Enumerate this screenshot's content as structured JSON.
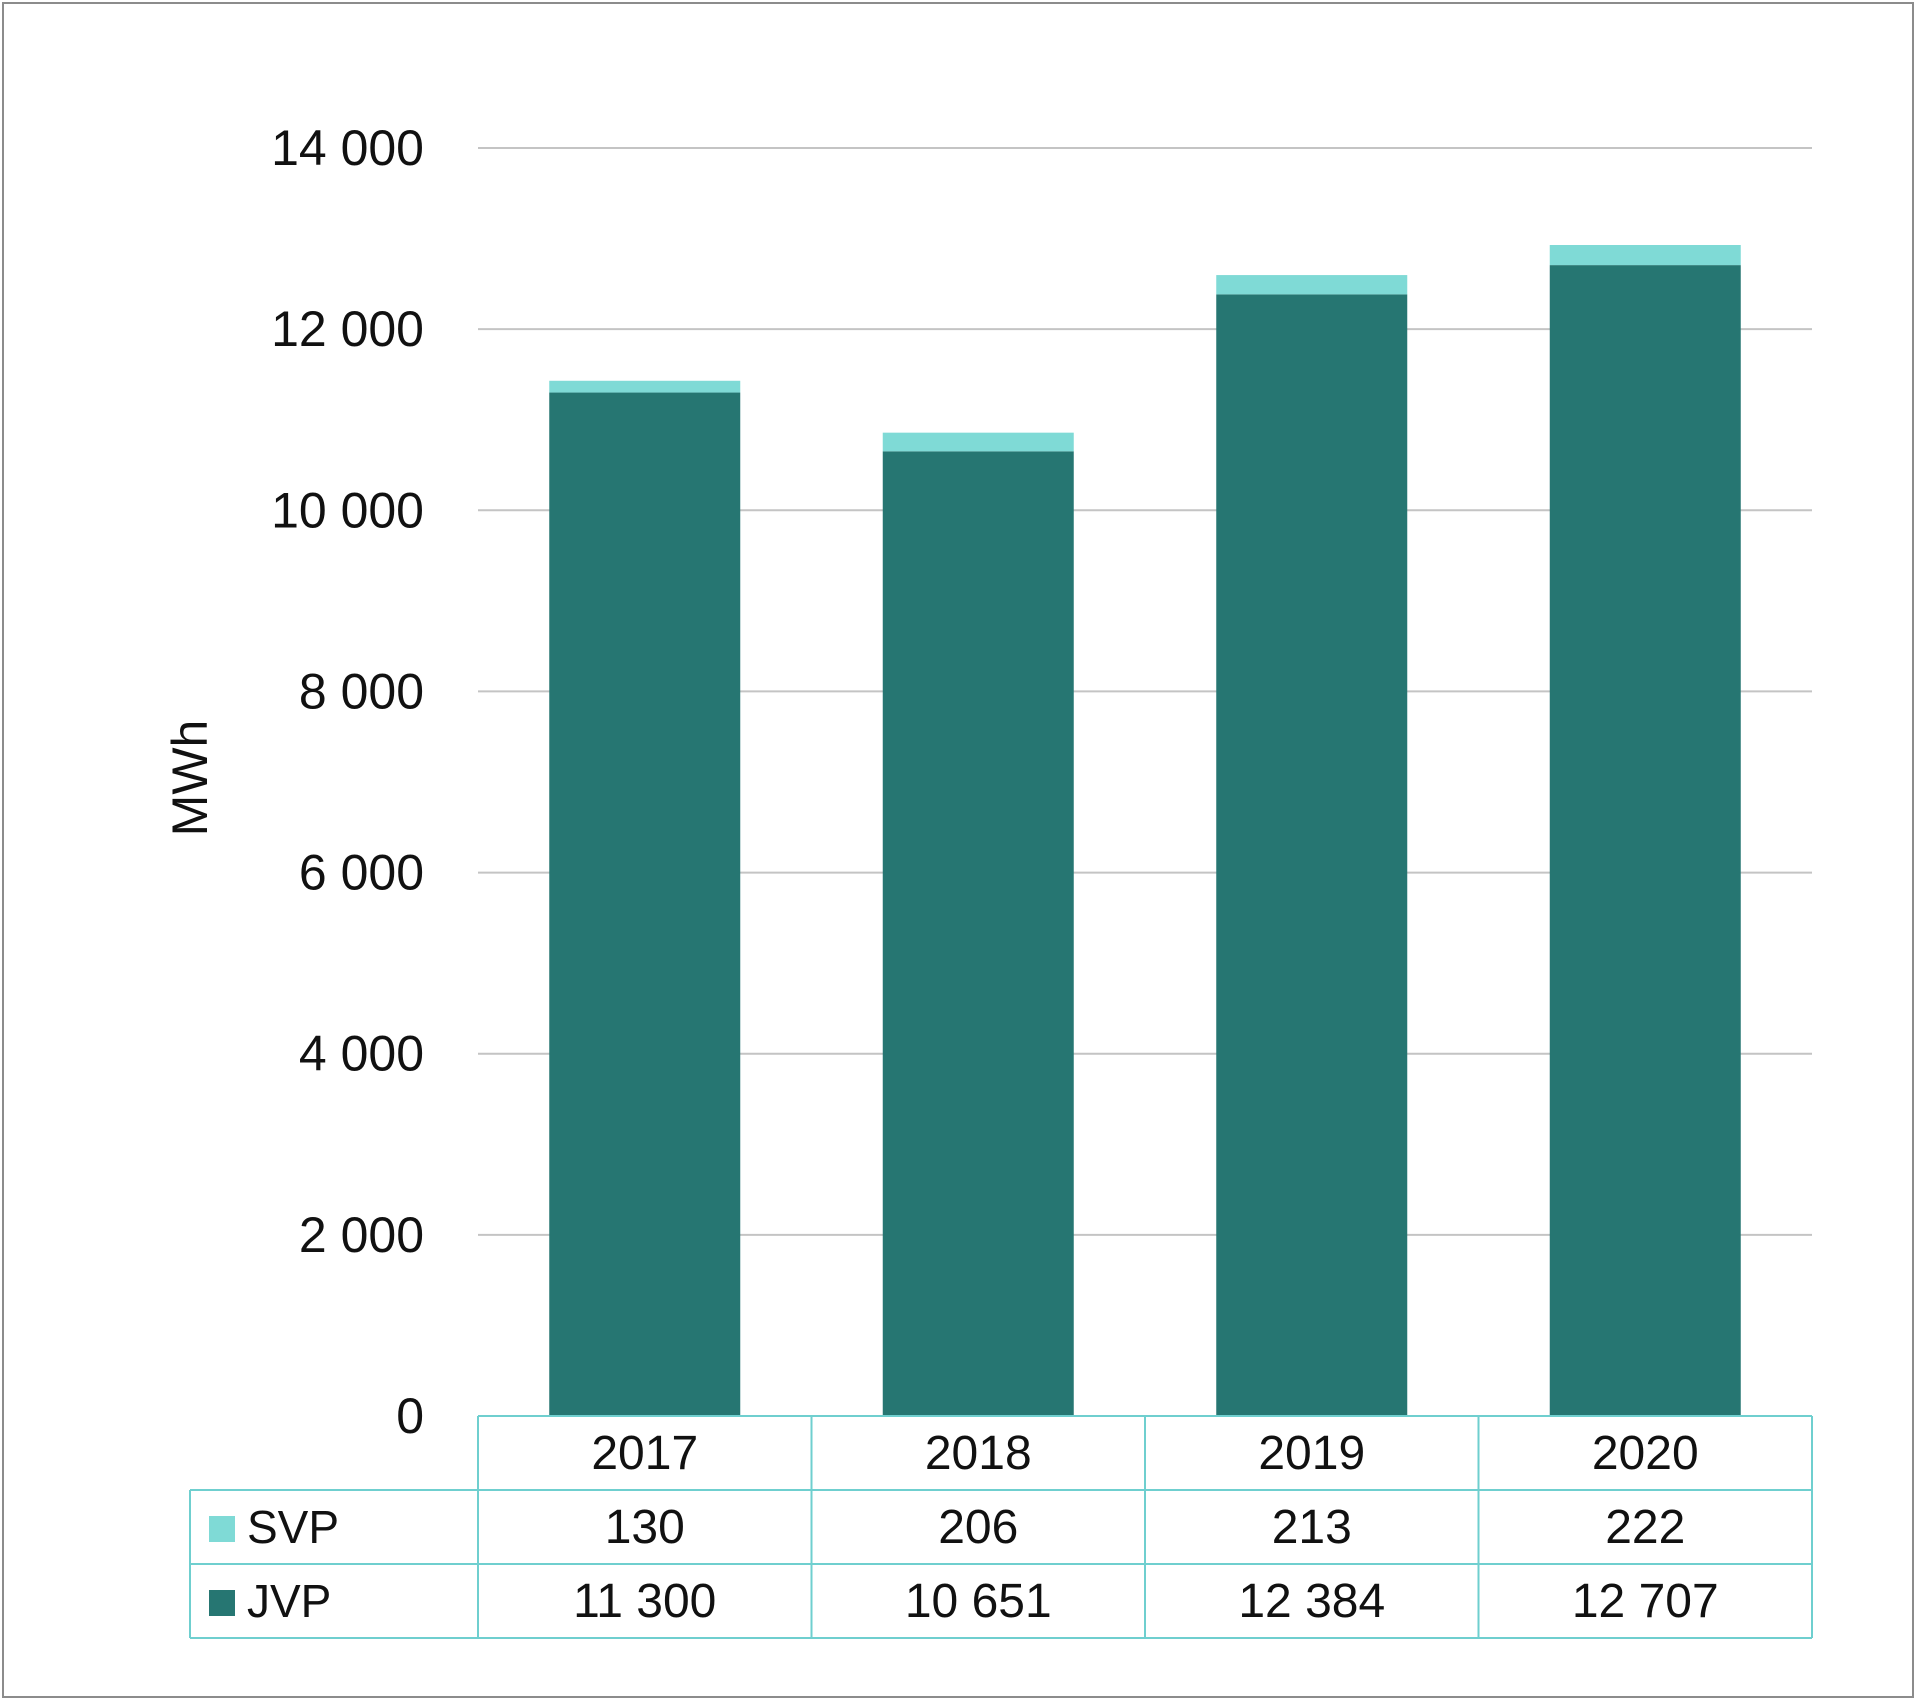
{
  "chart_data": {
    "type": "bar",
    "stacked": true,
    "categories": [
      "2017",
      "2018",
      "2019",
      "2020"
    ],
    "series": [
      {
        "name": "JVP",
        "values": [
          11300,
          10651,
          12384,
          12707
        ],
        "color": "#267672",
        "labels": [
          "11 300",
          "10 651",
          "12 384",
          "12 707"
        ]
      },
      {
        "name": "SVP",
        "values": [
          130,
          206,
          213,
          222
        ],
        "color": "#7fdad6",
        "labels": [
          "130",
          "206",
          "213",
          "222"
        ]
      }
    ],
    "ylabel": "MWh",
    "ylim": [
      0,
      14000
    ],
    "yticks": [
      0,
      2000,
      4000,
      6000,
      8000,
      10000,
      12000,
      14000
    ],
    "ytick_labels": [
      "0",
      "2 000",
      "4 000",
      "6 000",
      "8 000",
      "10 000",
      "12 000",
      "14 000"
    ],
    "grid": true,
    "legend": "data-table",
    "data_table_rows": [
      "SVP",
      "JVP"
    ],
    "gridline_color": "#c4c4c4",
    "table_border_color": "#6fcfcf"
  }
}
